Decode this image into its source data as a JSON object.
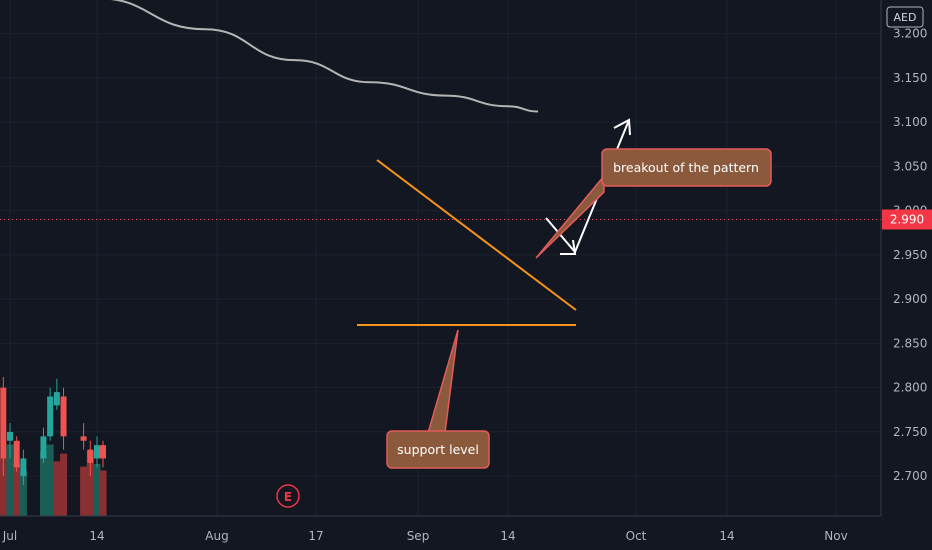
{
  "chart_data": {
    "type": "candlestick",
    "currency_label": "AED",
    "current_price_label": "2.990",
    "y_axis": {
      "ylim": [
        2.655,
        3.238
      ],
      "ticks": [
        "3.200",
        "3.150",
        "3.100",
        "3.050",
        "3.000",
        "2.950",
        "2.900",
        "2.850",
        "2.800",
        "2.750",
        "2.700"
      ]
    },
    "x_axis": {
      "ticks": [
        "Jul",
        "14",
        "Aug",
        "17",
        "Sep",
        "14",
        "Oct",
        "14",
        "Nov"
      ]
    },
    "earnings_marker": "E",
    "grid": true,
    "candles": [
      {
        "date": "Jun 30",
        "o": 2.8,
        "h": 2.812,
        "l": 2.7,
        "c": 2.72
      },
      {
        "date": "Jul 1",
        "o": 2.74,
        "h": 2.76,
        "l": 2.72,
        "c": 2.75
      },
      {
        "date": "Jul 2",
        "o": 2.74,
        "h": 2.745,
        "l": 2.705,
        "c": 2.71
      },
      {
        "date": "Jul 3",
        "o": 2.7,
        "h": 2.73,
        "l": 2.69,
        "c": 2.72
      },
      {
        "date": "Jul 6",
        "o": 2.72,
        "h": 2.755,
        "l": 2.715,
        "c": 2.745
      },
      {
        "date": "Jul 7",
        "o": 2.745,
        "h": 2.8,
        "l": 2.74,
        "c": 2.79
      },
      {
        "date": "Jul 8",
        "o": 2.78,
        "h": 2.81,
        "l": 2.775,
        "c": 2.795
      },
      {
        "date": "Jul 9",
        "o": 2.79,
        "h": 2.8,
        "l": 2.73,
        "c": 2.745
      },
      {
        "date": "Jul 12",
        "o": 2.745,
        "h": 2.76,
        "l": 2.73,
        "c": 2.74
      },
      {
        "date": "Jul 13",
        "o": 2.73,
        "h": 2.74,
        "l": 2.7,
        "c": 2.715
      },
      {
        "date": "Jul 14",
        "o": 2.72,
        "h": 2.745,
        "l": 2.71,
        "c": 2.735
      },
      {
        "date": "Jul 15",
        "o": 2.735,
        "h": 2.74,
        "l": 2.71,
        "c": 2.72
      }
    ],
    "volume": [
      {
        "date": "Jun 30",
        "v": 0.45,
        "dir": "down"
      },
      {
        "date": "Jul 1",
        "v": 0.55,
        "dir": "up"
      },
      {
        "date": "Jul 2",
        "v": 0.4,
        "dir": "down"
      },
      {
        "date": "Jul 3",
        "v": 0.35,
        "dir": "up"
      },
      {
        "date": "Jul 6",
        "v": 0.5,
        "dir": "up"
      },
      {
        "date": "Jul 7",
        "v": 0.55,
        "dir": "up"
      },
      {
        "date": "Jul 8",
        "v": 0.42,
        "dir": "down"
      },
      {
        "date": "Jul 9",
        "v": 0.48,
        "dir": "down"
      },
      {
        "date": "Jul 12",
        "v": 0.38,
        "dir": "down"
      },
      {
        "date": "Jul 13",
        "v": 0.5,
        "dir": "down"
      },
      {
        "date": "Jul 14",
        "v": 0.4,
        "dir": "up"
      },
      {
        "date": "Jul 15",
        "v": 0.35,
        "dir": "down"
      }
    ],
    "moving_average": [
      {
        "date": "Jul 14",
        "value": 3.24
      },
      {
        "date": "Aug 1",
        "value": 3.205
      },
      {
        "date": "Aug 14",
        "value": 3.17
      },
      {
        "date": "Aug 25",
        "value": 3.145
      },
      {
        "date": "Sep 5",
        "value": 3.13
      },
      {
        "date": "Sep 14",
        "value": 3.118
      },
      {
        "date": "Sep 18",
        "value": 3.112
      }
    ],
    "annotations": [
      {
        "text": "breakout of the pattern"
      },
      {
        "text": "support level"
      }
    ]
  }
}
